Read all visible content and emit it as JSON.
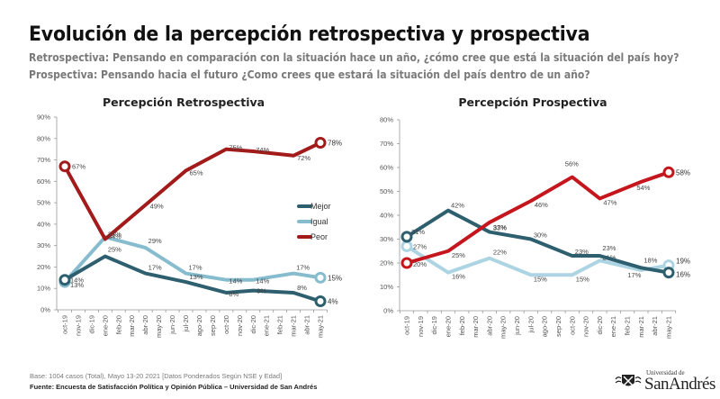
{
  "header": {
    "title": "Evolución de la percepción retrospectiva y prospectiva",
    "subtitle_retro": "Retrospectiva: Pensando en comparación con la situación hace un año, ¿cómo cree que está la situación del país hoy?",
    "subtitle_prosp": "Prospectiva: Pensando hacia el futuro ¿Como crees que estará la situación del país dentro de un año?"
  },
  "footer": {
    "base": "Base: 1004 casos (Total), Mayo 13-20 2021 [Datos Ponderados Según NSE y Edad]",
    "source": "Fuente: Encuesta de Satisfacción Política y Opinión Pública – Universidad de San Andrés",
    "logo_top": "Universidad de",
    "logo_main": "SanAndrés",
    "logo_icon": "university-crest-icon"
  },
  "colors": {
    "mejor": "#2d5f6e",
    "igual": "#86bccd",
    "igual_prosp": "#add4e2",
    "peor_retro": "#a31a1a",
    "peor_prosp": "#c4161c"
  },
  "chart_data": [
    {
      "type": "line",
      "title": "Percepción Retrospectiva",
      "categories": [
        "oct-19",
        "nov-19",
        "dic-19",
        "ene-20",
        "feb-20",
        "mar-20",
        "abr-20",
        "may-20",
        "jun-20",
        "jul-20",
        "ago-20",
        "sep-20",
        "oct-20",
        "nov-20",
        "dic-20",
        "ene-21",
        "feb-21",
        "mar-21",
        "abr-21",
        "may-21"
      ],
      "point_categories": [
        "oct-19",
        "ene-20",
        "abr-20",
        "jul-20",
        "oct-20",
        "dic-20",
        "mar-21",
        "may-21"
      ],
      "ylim": [
        0,
        90
      ],
      "yticks": [
        "0%",
        "10%",
        "20%",
        "30%",
        "40%",
        "50%",
        "60%",
        "70%",
        "80%",
        "90%"
      ],
      "xlabel": "",
      "ylabel": "",
      "legend": "right",
      "grid": false,
      "series": [
        {
          "name": "Mejor",
          "values": [
            14,
            25,
            17,
            13,
            8,
            9,
            8,
            4
          ],
          "labels": [
            "14%",
            "25%",
            "17%",
            "13%",
            "8%",
            "9%",
            "8%",
            "4%"
          ]
        },
        {
          "name": "Igual",
          "values": [
            13,
            34,
            29,
            17,
            14,
            14,
            17,
            15
          ],
          "labels": [
            "13%",
            "34%",
            "29%",
            "17%",
            "14%",
            "14%",
            "17%",
            "15%"
          ]
        },
        {
          "name": "Peor",
          "values": [
            67,
            33,
            49,
            65,
            75,
            74,
            72,
            78
          ],
          "labels": [
            "67%",
            "33%",
            "49%",
            "65%",
            "75%",
            "74%",
            "72%",
            "78%"
          ]
        }
      ]
    },
    {
      "type": "line",
      "title": "Percepción Prospectiva",
      "categories": [
        "oct-19",
        "nov-19",
        "dic-19",
        "ene-20",
        "feb-20",
        "mar-20",
        "abr-20",
        "may-20",
        "jun-20",
        "jul-20",
        "ago-20",
        "sep-20",
        "oct-20",
        "nov-20",
        "dic-20",
        "ene-21",
        "feb-21",
        "mar-21",
        "abr-21",
        "may-21"
      ],
      "point_categories": [
        "oct-19",
        "ene-20",
        "abr-20",
        "jul-20",
        "oct-20",
        "dic-20",
        "mar-21",
        "may-21"
      ],
      "ylim": [
        0,
        80
      ],
      "yticks": [
        "0%",
        "10%",
        "20%",
        "30%",
        "40%",
        "50%",
        "60%",
        "70%",
        "80%"
      ],
      "xlabel": "",
      "ylabel": "",
      "legend": "none",
      "grid": false,
      "series": [
        {
          "name": "Mejor",
          "values": [
            31,
            42,
            33,
            30,
            23,
            23,
            18,
            16
          ],
          "labels": [
            "31%",
            "42%",
            "33%",
            "30%",
            "23%",
            "23%",
            "18%",
            "16%"
          ]
        },
        {
          "name": "Igual",
          "values": [
            27,
            16,
            22,
            15,
            15,
            21,
            17,
            19
          ],
          "labels": [
            "27%",
            "16%",
            "22%",
            "15%",
            "15%",
            "21%",
            "17%",
            "19%"
          ]
        },
        {
          "name": "Peor",
          "values": [
            20,
            25,
            37,
            46,
            56,
            47,
            54,
            58
          ],
          "labels": [
            "20%",
            "25%",
            "37%",
            "46%",
            "56%",
            "47%",
            "54%",
            "58%"
          ]
        }
      ]
    }
  ]
}
